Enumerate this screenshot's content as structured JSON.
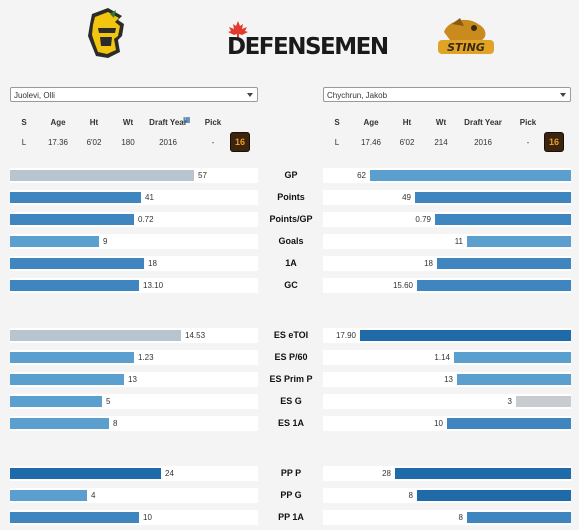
{
  "header": {
    "brand_title": "DEFENSEMEN",
    "left_logo_icon": "knight-helmet-logo-icon",
    "right_logo_icon": "sting-logo-icon",
    "brand_leaf_icon": "maple-leaf-icon"
  },
  "players": [
    {
      "name": "Juolevi, Olli",
      "info": {
        "S": "L",
        "Age": "17.36",
        "Ht": "6'02",
        "Wt": "180",
        "DraftYear": "2016",
        "Pick": "-",
        "badge": "16"
      }
    },
    {
      "name": "Chychrun, Jakob",
      "info": {
        "S": "L",
        "Age": "17.46",
        "Ht": "6'02",
        "Wt": "214",
        "DraftYear": "2016",
        "Pick": "-",
        "badge": "16"
      }
    }
  ],
  "info_headers": [
    "S",
    "Age",
    "Ht",
    "Wt",
    "Draft Year",
    "Pick"
  ],
  "colors": {
    "grey": "#b8c4cf",
    "light_blue": "#5b9fcf",
    "blue": "#3f85bf",
    "dark_blue": "#1f6aa8",
    "silver": "#c8ccd0"
  },
  "stats": [
    {
      "label": "GP",
      "left": {
        "value": "57",
        "frac": 0.74,
        "color": "grey"
      },
      "right": {
        "value": "62",
        "frac": 0.81,
        "color": "light_blue"
      }
    },
    {
      "label": "Points",
      "left": {
        "value": "41",
        "frac": 0.53,
        "color": "blue"
      },
      "right": {
        "value": "49",
        "frac": 0.63,
        "color": "blue"
      }
    },
    {
      "label": "Points/GP",
      "left": {
        "value": "0.72",
        "frac": 0.5,
        "color": "blue"
      },
      "right": {
        "value": "0.79",
        "frac": 0.55,
        "color": "blue"
      }
    },
    {
      "label": "Goals",
      "left": {
        "value": "9",
        "frac": 0.36,
        "color": "light_blue"
      },
      "right": {
        "value": "11",
        "frac": 0.42,
        "color": "light_blue"
      }
    },
    {
      "label": "1A",
      "left": {
        "value": "18",
        "frac": 0.54,
        "color": "blue"
      },
      "right": {
        "value": "18",
        "frac": 0.54,
        "color": "blue"
      }
    },
    {
      "label": "GC",
      "left": {
        "value": "13.10",
        "frac": 0.52,
        "color": "blue"
      },
      "right": {
        "value": "15.60",
        "frac": 0.62,
        "color": "blue"
      }
    },
    {
      "label": "ES eTOI",
      "left": {
        "value": "14.53",
        "frac": 0.69,
        "color": "grey"
      },
      "right": {
        "value": "17.90",
        "frac": 0.85,
        "color": "dark_blue"
      }
    },
    {
      "label": "ES P/60",
      "left": {
        "value": "1.23",
        "frac": 0.5,
        "color": "light_blue"
      },
      "right": {
        "value": "1.14",
        "frac": 0.47,
        "color": "light_blue"
      }
    },
    {
      "label": "ES Prim P",
      "left": {
        "value": "13",
        "frac": 0.46,
        "color": "light_blue"
      },
      "right": {
        "value": "13",
        "frac": 0.46,
        "color": "light_blue"
      }
    },
    {
      "label": "ES G",
      "left": {
        "value": "5",
        "frac": 0.37,
        "color": "light_blue"
      },
      "right": {
        "value": "3",
        "frac": 0.22,
        "color": "silver"
      }
    },
    {
      "label": "ES 1A",
      "left": {
        "value": "8",
        "frac": 0.4,
        "color": "light_blue"
      },
      "right": {
        "value": "10",
        "frac": 0.5,
        "color": "blue"
      }
    },
    {
      "label": "PP P",
      "left": {
        "value": "24",
        "frac": 0.61,
        "color": "dark_blue"
      },
      "right": {
        "value": "28",
        "frac": 0.71,
        "color": "dark_blue"
      }
    },
    {
      "label": "PP G",
      "left": {
        "value": "4",
        "frac": 0.31,
        "color": "light_blue"
      },
      "right": {
        "value": "8",
        "frac": 0.62,
        "color": "dark_blue"
      }
    },
    {
      "label": "PP 1A",
      "left": {
        "value": "10",
        "frac": 0.52,
        "color": "blue"
      },
      "right": {
        "value": "8",
        "frac": 0.42,
        "color": "blue"
      }
    }
  ]
}
